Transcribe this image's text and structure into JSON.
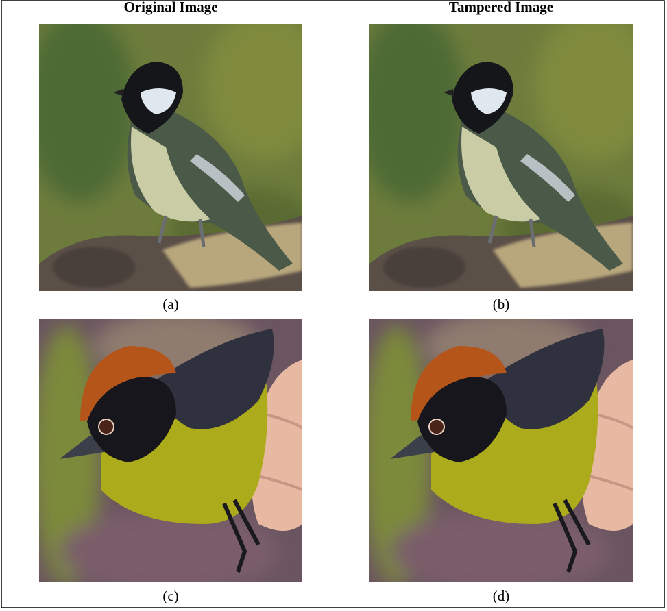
{
  "header": {
    "left": "Original Image",
    "right": "Tampered Image"
  },
  "panels": [
    {
      "label": "(a)"
    },
    {
      "label": "(b)"
    },
    {
      "label": "(c)"
    },
    {
      "label": "(d)"
    }
  ]
}
